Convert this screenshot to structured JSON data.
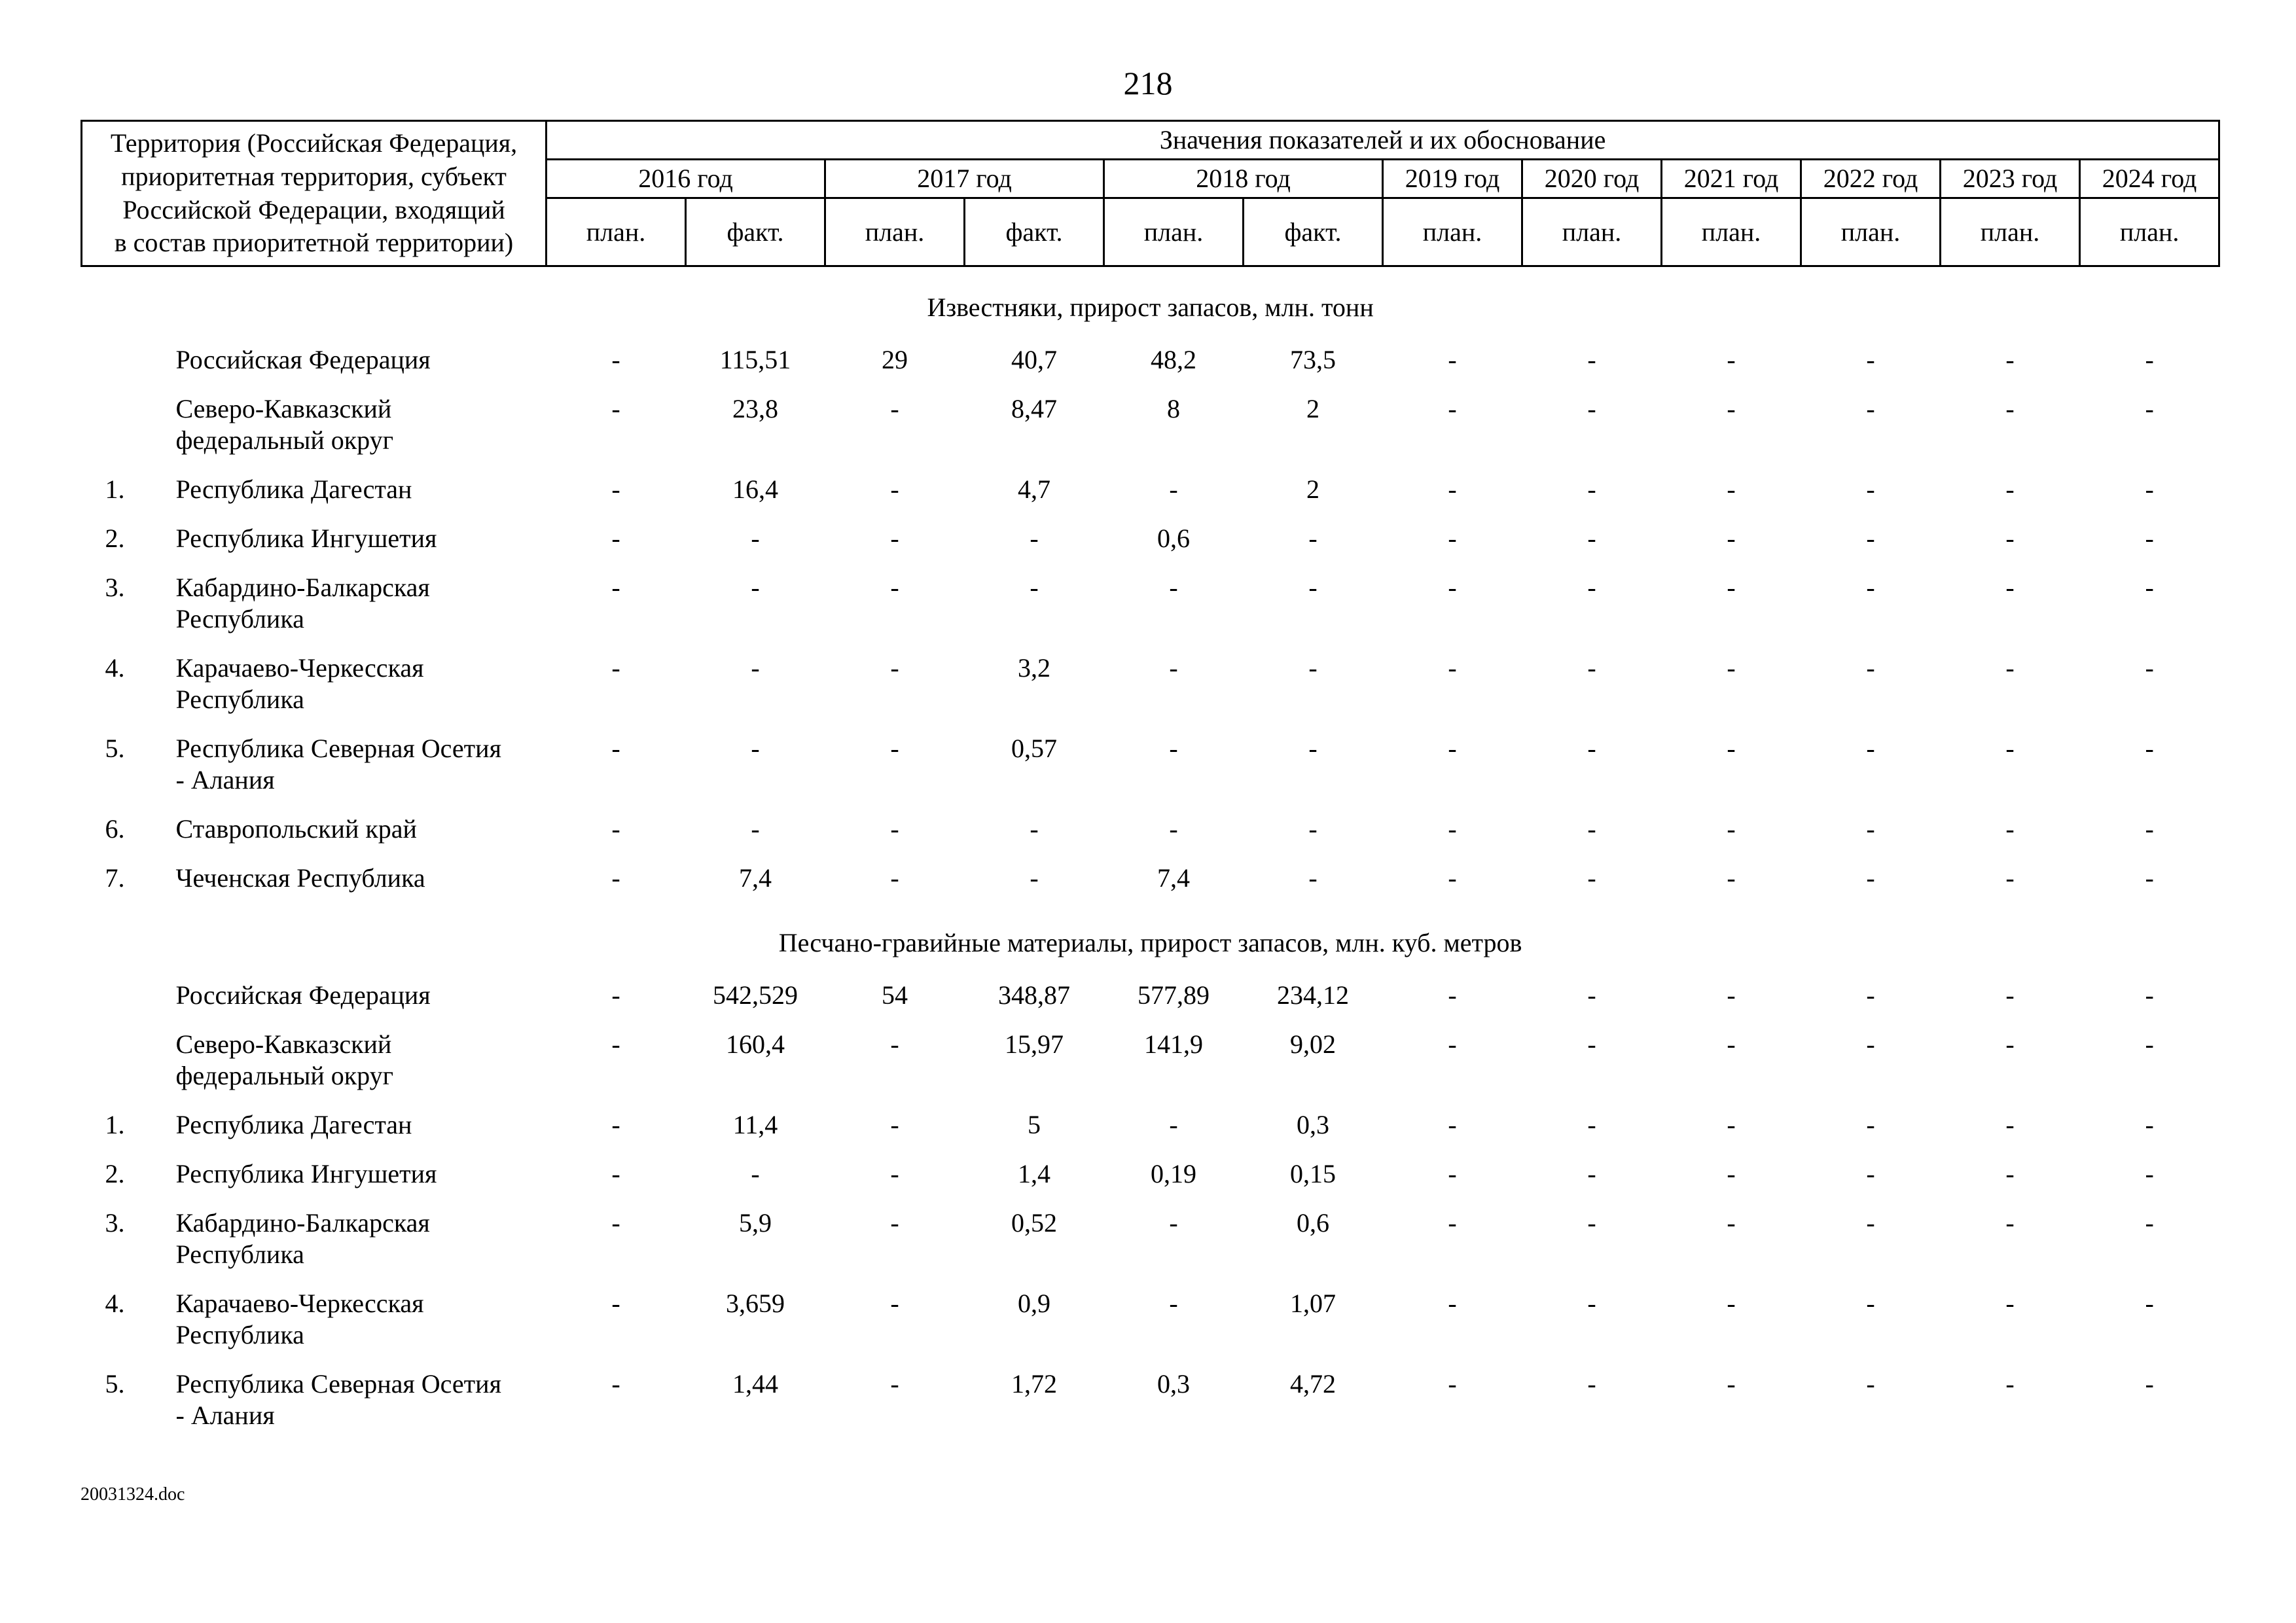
{
  "page": {
    "number": "218",
    "footer": "20031324.doc"
  },
  "table": {
    "territory_header": "Территория (Российская Федерация,\nприоритетная территория, субъект\nРоссийской Федерации, входящий\nв состав приоритетной территории)",
    "values_header": "Значения показателей и их обоснование",
    "columns": {
      "years": [
        {
          "label": "2016 год",
          "span": 2
        },
        {
          "label": "2017 год",
          "span": 2
        },
        {
          "label": "2018 год",
          "span": 2
        },
        {
          "label": "2019 год",
          "span": 1
        },
        {
          "label": "2020 год",
          "span": 1
        },
        {
          "label": "2021 год",
          "span": 1
        },
        {
          "label": "2022 год",
          "span": 1
        },
        {
          "label": "2023 год",
          "span": 1
        },
        {
          "label": "2024 год",
          "span": 1
        }
      ],
      "subs": [
        "план.",
        "факт.",
        "план.",
        "факт.",
        "план.",
        "факт.",
        "план.",
        "план.",
        "план.",
        "план.",
        "план.",
        "план."
      ]
    },
    "sections": [
      {
        "title": "Известняки, прирост запасов, млн. тонн",
        "rows": [
          {
            "num": "",
            "territory": "Российская Федерация",
            "values": [
              "-",
              "115,51",
              "29",
              "40,7",
              "48,2",
              "73,5",
              "-",
              "-",
              "-",
              "-",
              "-",
              "-"
            ]
          },
          {
            "num": "",
            "territory": "Северо-Кавказский федеральный округ",
            "values": [
              "-",
              "23,8",
              "-",
              "8,47",
              "8",
              "2",
              "-",
              "-",
              "-",
              "-",
              "-",
              "-"
            ]
          },
          {
            "num": "1.",
            "territory": "Республика Дагестан",
            "values": [
              "-",
              "16,4",
              "-",
              "4,7",
              "-",
              "2",
              "-",
              "-",
              "-",
              "-",
              "-",
              "-"
            ]
          },
          {
            "num": "2.",
            "territory": "Республика Ингушетия",
            "values": [
              "-",
              "-",
              "-",
              "-",
              "0,6",
              "-",
              "-",
              "-",
              "-",
              "-",
              "-",
              "-"
            ]
          },
          {
            "num": "3.",
            "territory": "Кабардино-Балкарская Республика",
            "values": [
              "-",
              "-",
              "-",
              "-",
              "-",
              "-",
              "-",
              "-",
              "-",
              "-",
              "-",
              "-"
            ]
          },
          {
            "num": "4.",
            "territory": "Карачаево-Черкесская Республика",
            "values": [
              "-",
              "-",
              "-",
              "3,2",
              "-",
              "-",
              "-",
              "-",
              "-",
              "-",
              "-",
              "-"
            ]
          },
          {
            "num": "5.",
            "territory": "Республика Северная Осетия - Алания",
            "values": [
              "-",
              "-",
              "-",
              "0,57",
              "-",
              "-",
              "-",
              "-",
              "-",
              "-",
              "-",
              "-"
            ]
          },
          {
            "num": "6.",
            "territory": "Ставропольский край",
            "values": [
              "-",
              "-",
              "-",
              "-",
              "-",
              "-",
              "-",
              "-",
              "-",
              "-",
              "-",
              "-"
            ]
          },
          {
            "num": "7.",
            "territory": "Чеченская Республика",
            "values": [
              "-",
              "7,4",
              "-",
              "-",
              "7,4",
              "-",
              "-",
              "-",
              "-",
              "-",
              "-",
              "-"
            ]
          }
        ]
      },
      {
        "title": "Песчано-гравийные материалы, прирост запасов, млн. куб. метров",
        "rows": [
          {
            "num": "",
            "territory": "Российская Федерация",
            "values": [
              "-",
              "542,529",
              "54",
              "348,87",
              "577,89",
              "234,12",
              "-",
              "-",
              "-",
              "-",
              "-",
              "-"
            ]
          },
          {
            "num": "",
            "territory": "Северо-Кавказский федеральный округ",
            "values": [
              "-",
              "160,4",
              "-",
              "15,97",
              "141,9",
              "9,02",
              "-",
              "-",
              "-",
              "-",
              "-",
              "-"
            ]
          },
          {
            "num": "1.",
            "territory": "Республика Дагестан",
            "values": [
              "-",
              "11,4",
              "-",
              "5",
              "-",
              "0,3",
              "-",
              "-",
              "-",
              "-",
              "-",
              "-"
            ]
          },
          {
            "num": "2.",
            "territory": "Республика Ингушетия",
            "values": [
              "-",
              "-",
              "-",
              "1,4",
              "0,19",
              "0,15",
              "-",
              "-",
              "-",
              "-",
              "-",
              "-"
            ]
          },
          {
            "num": "3.",
            "territory": "Кабардино-Балкарская Республика",
            "values": [
              "-",
              "5,9",
              "-",
              "0,52",
              "-",
              "0,6",
              "-",
              "-",
              "-",
              "-",
              "-",
              "-"
            ]
          },
          {
            "num": "4.",
            "territory": "Карачаево-Черкесская Республика",
            "values": [
              "-",
              "3,659",
              "-",
              "0,9",
              "-",
              "1,07",
              "-",
              "-",
              "-",
              "-",
              "-",
              "-"
            ]
          },
          {
            "num": "5.",
            "territory": "Республика Северная Осетия - Алания",
            "values": [
              "-",
              "1,44",
              "-",
              "1,72",
              "0,3",
              "4,72",
              "-",
              "-",
              "-",
              "-",
              "-",
              "-"
            ]
          }
        ]
      }
    ]
  }
}
